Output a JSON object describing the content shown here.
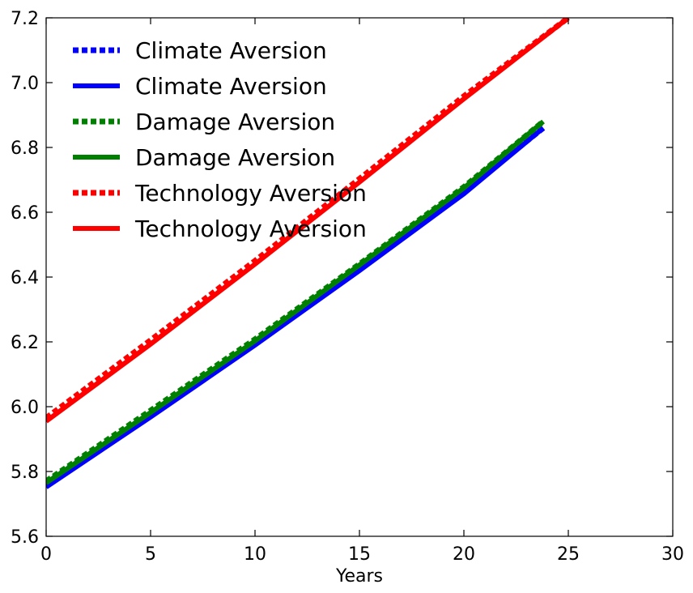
{
  "chart_data": {
    "type": "line",
    "title": "",
    "xlabel": "Years",
    "ylabel": "",
    "xlim": [
      0,
      30
    ],
    "ylim": [
      5.6,
      7.2
    ],
    "x_ticks": [
      "0",
      "5",
      "10",
      "15",
      "20",
      "25",
      "30"
    ],
    "y_ticks": [
      "5.6",
      "5.8",
      "6.0",
      "6.2",
      "6.4",
      "6.6",
      "6.8",
      "7.0",
      "7.2"
    ],
    "grid": false,
    "legend_position": "top-left",
    "series": [
      {
        "name": "Climate Aversion",
        "style": "dotted",
        "color": "#0000ff",
        "x": [
          0,
          5,
          10,
          15,
          20,
          23.8
        ],
        "y": [
          5.765,
          5.98,
          6.2,
          6.43,
          6.665,
          6.86
        ]
      },
      {
        "name": "Climate Aversion",
        "style": "solid",
        "color": "#0000ff",
        "x": [
          0,
          5,
          10,
          15,
          20,
          23.8
        ],
        "y": [
          5.752,
          5.968,
          6.19,
          6.42,
          6.657,
          6.86
        ]
      },
      {
        "name": "Damage Aversion",
        "style": "dotted",
        "color": "#008000",
        "x": [
          0,
          5,
          10,
          15,
          20,
          23.8
        ],
        "y": [
          5.77,
          5.988,
          6.208,
          6.44,
          6.678,
          6.88
        ]
      },
      {
        "name": "Damage Aversion",
        "style": "solid",
        "color": "#008000",
        "x": [
          0,
          5,
          10,
          15,
          20,
          23.8
        ],
        "y": [
          5.765,
          5.982,
          6.203,
          6.437,
          6.675,
          6.88
        ]
      },
      {
        "name": "Technology Aversion",
        "style": "dotted",
        "color": "#ff0000",
        "x": [
          0,
          5,
          10,
          15,
          20,
          25
        ],
        "y": [
          5.965,
          6.205,
          6.45,
          6.703,
          6.958,
          7.2
        ]
      },
      {
        "name": "Technology Aversion",
        "style": "solid",
        "color": "#ff0000",
        "x": [
          0,
          5,
          10,
          15,
          20,
          25
        ],
        "y": [
          5.955,
          6.193,
          6.44,
          6.693,
          6.95,
          7.2
        ]
      }
    ]
  }
}
